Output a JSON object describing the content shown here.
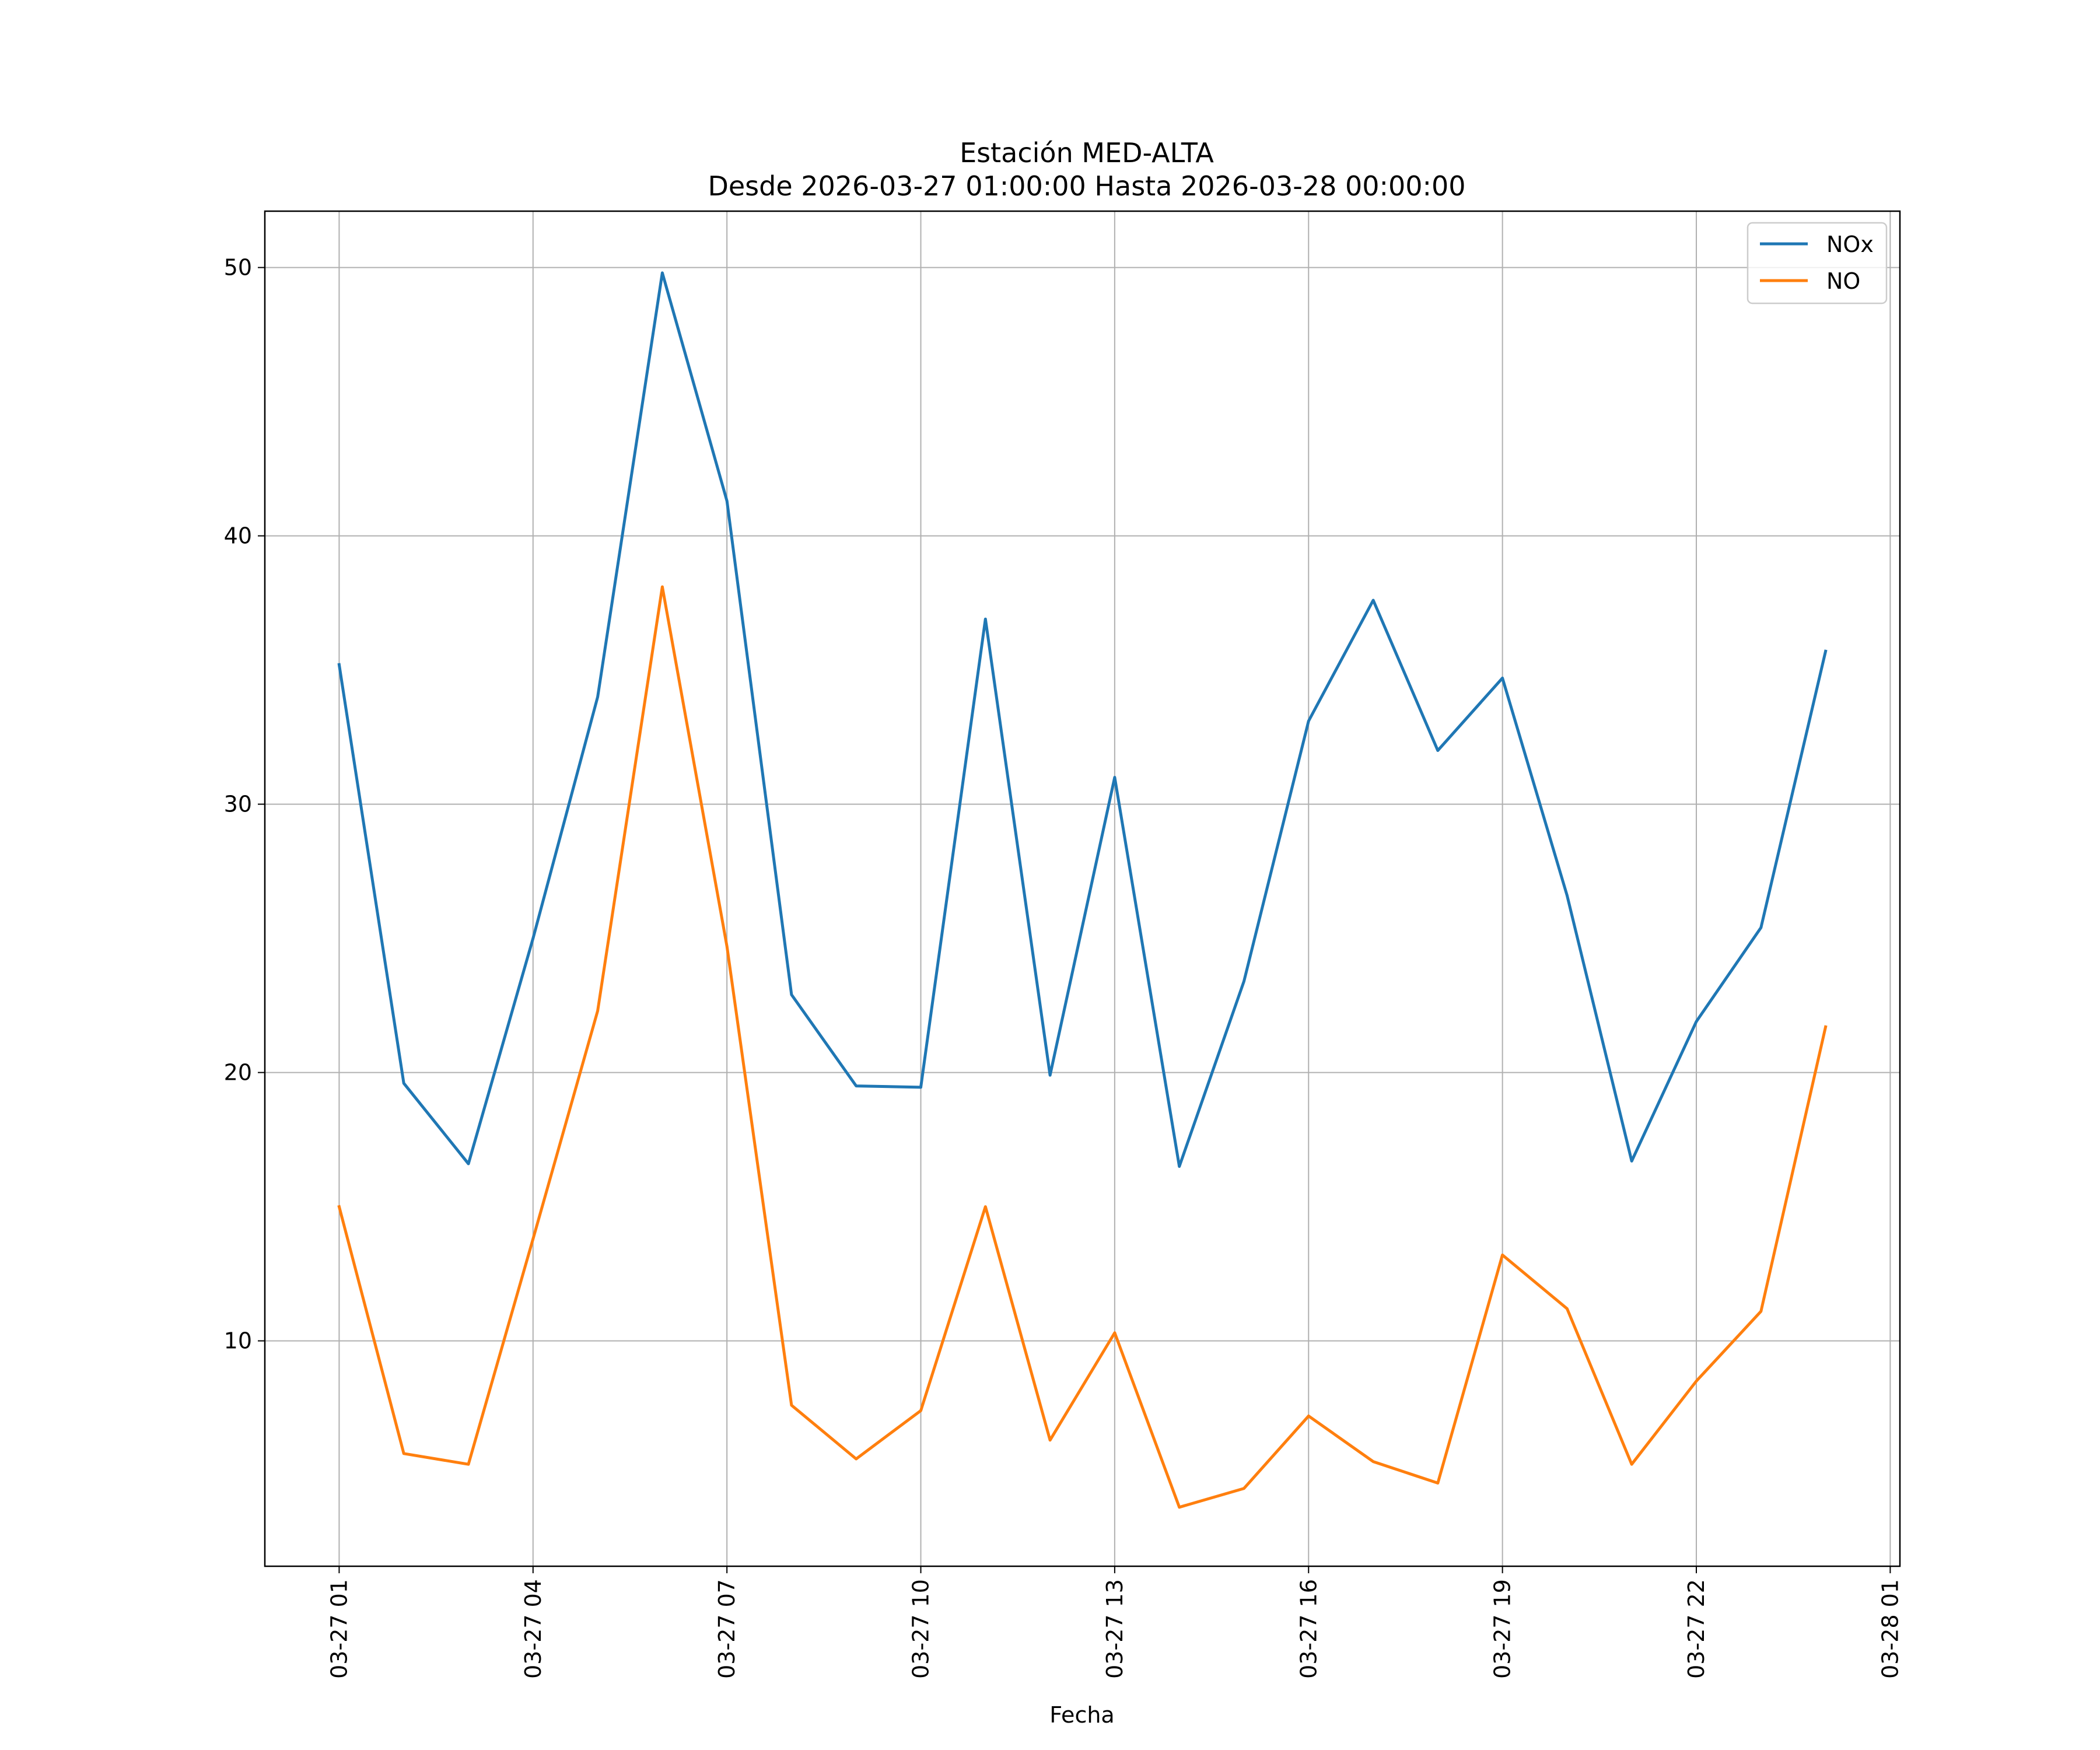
{
  "chart_data": {
    "type": "line",
    "title": "Estación MED-ALTA",
    "subtitle": "Desde 2026-03-27 01:00:00 Hasta 2026-03-28 00:00:00",
    "xlabel": "Fecha",
    "ylabel": "",
    "x": [
      "03-27 01",
      "03-27 02",
      "03-27 03",
      "03-27 04",
      "03-27 05",
      "03-27 06",
      "03-27 07",
      "03-27 08",
      "03-27 09",
      "03-27 10",
      "03-27 11",
      "03-27 12",
      "03-27 13",
      "03-27 14",
      "03-27 15",
      "03-27 16",
      "03-27 17",
      "03-27 18",
      "03-27 19",
      "03-27 20",
      "03-27 21",
      "03-27 22",
      "03-27 23",
      "03-28 00"
    ],
    "x_ticks": [
      "03-27 01",
      "03-27 04",
      "03-27 07",
      "03-27 10",
      "03-27 13",
      "03-27 16",
      "03-27 19",
      "03-27 22",
      "03-28 01"
    ],
    "x_range_hours": [
      -1.15,
      24.15
    ],
    "y_ticks": [
      10,
      20,
      30,
      40,
      50
    ],
    "ylim": [
      1.6,
      52.1
    ],
    "grid": true,
    "legend_position": "top-right",
    "series": [
      {
        "name": "NOx",
        "color": "#1f77b4",
        "values": [
          35.2,
          19.6,
          16.6,
          25.0,
          34.0,
          49.8,
          41.3,
          22.9,
          19.5,
          19.45,
          36.9,
          19.9,
          31.0,
          16.5,
          23.4,
          33.1,
          37.6,
          32.0,
          34.7,
          26.6,
          16.7,
          21.9,
          25.4,
          35.7
        ]
      },
      {
        "name": "NO",
        "color": "#ff7f0e",
        "values": [
          15.0,
          5.8,
          5.4,
          13.8,
          22.3,
          38.1,
          24.7,
          7.6,
          5.6,
          7.4,
          15.0,
          6.3,
          10.3,
          3.8,
          4.5,
          7.2,
          5.5,
          4.7,
          13.2,
          11.2,
          5.4,
          8.5,
          11.1,
          21.7
        ]
      }
    ]
  }
}
